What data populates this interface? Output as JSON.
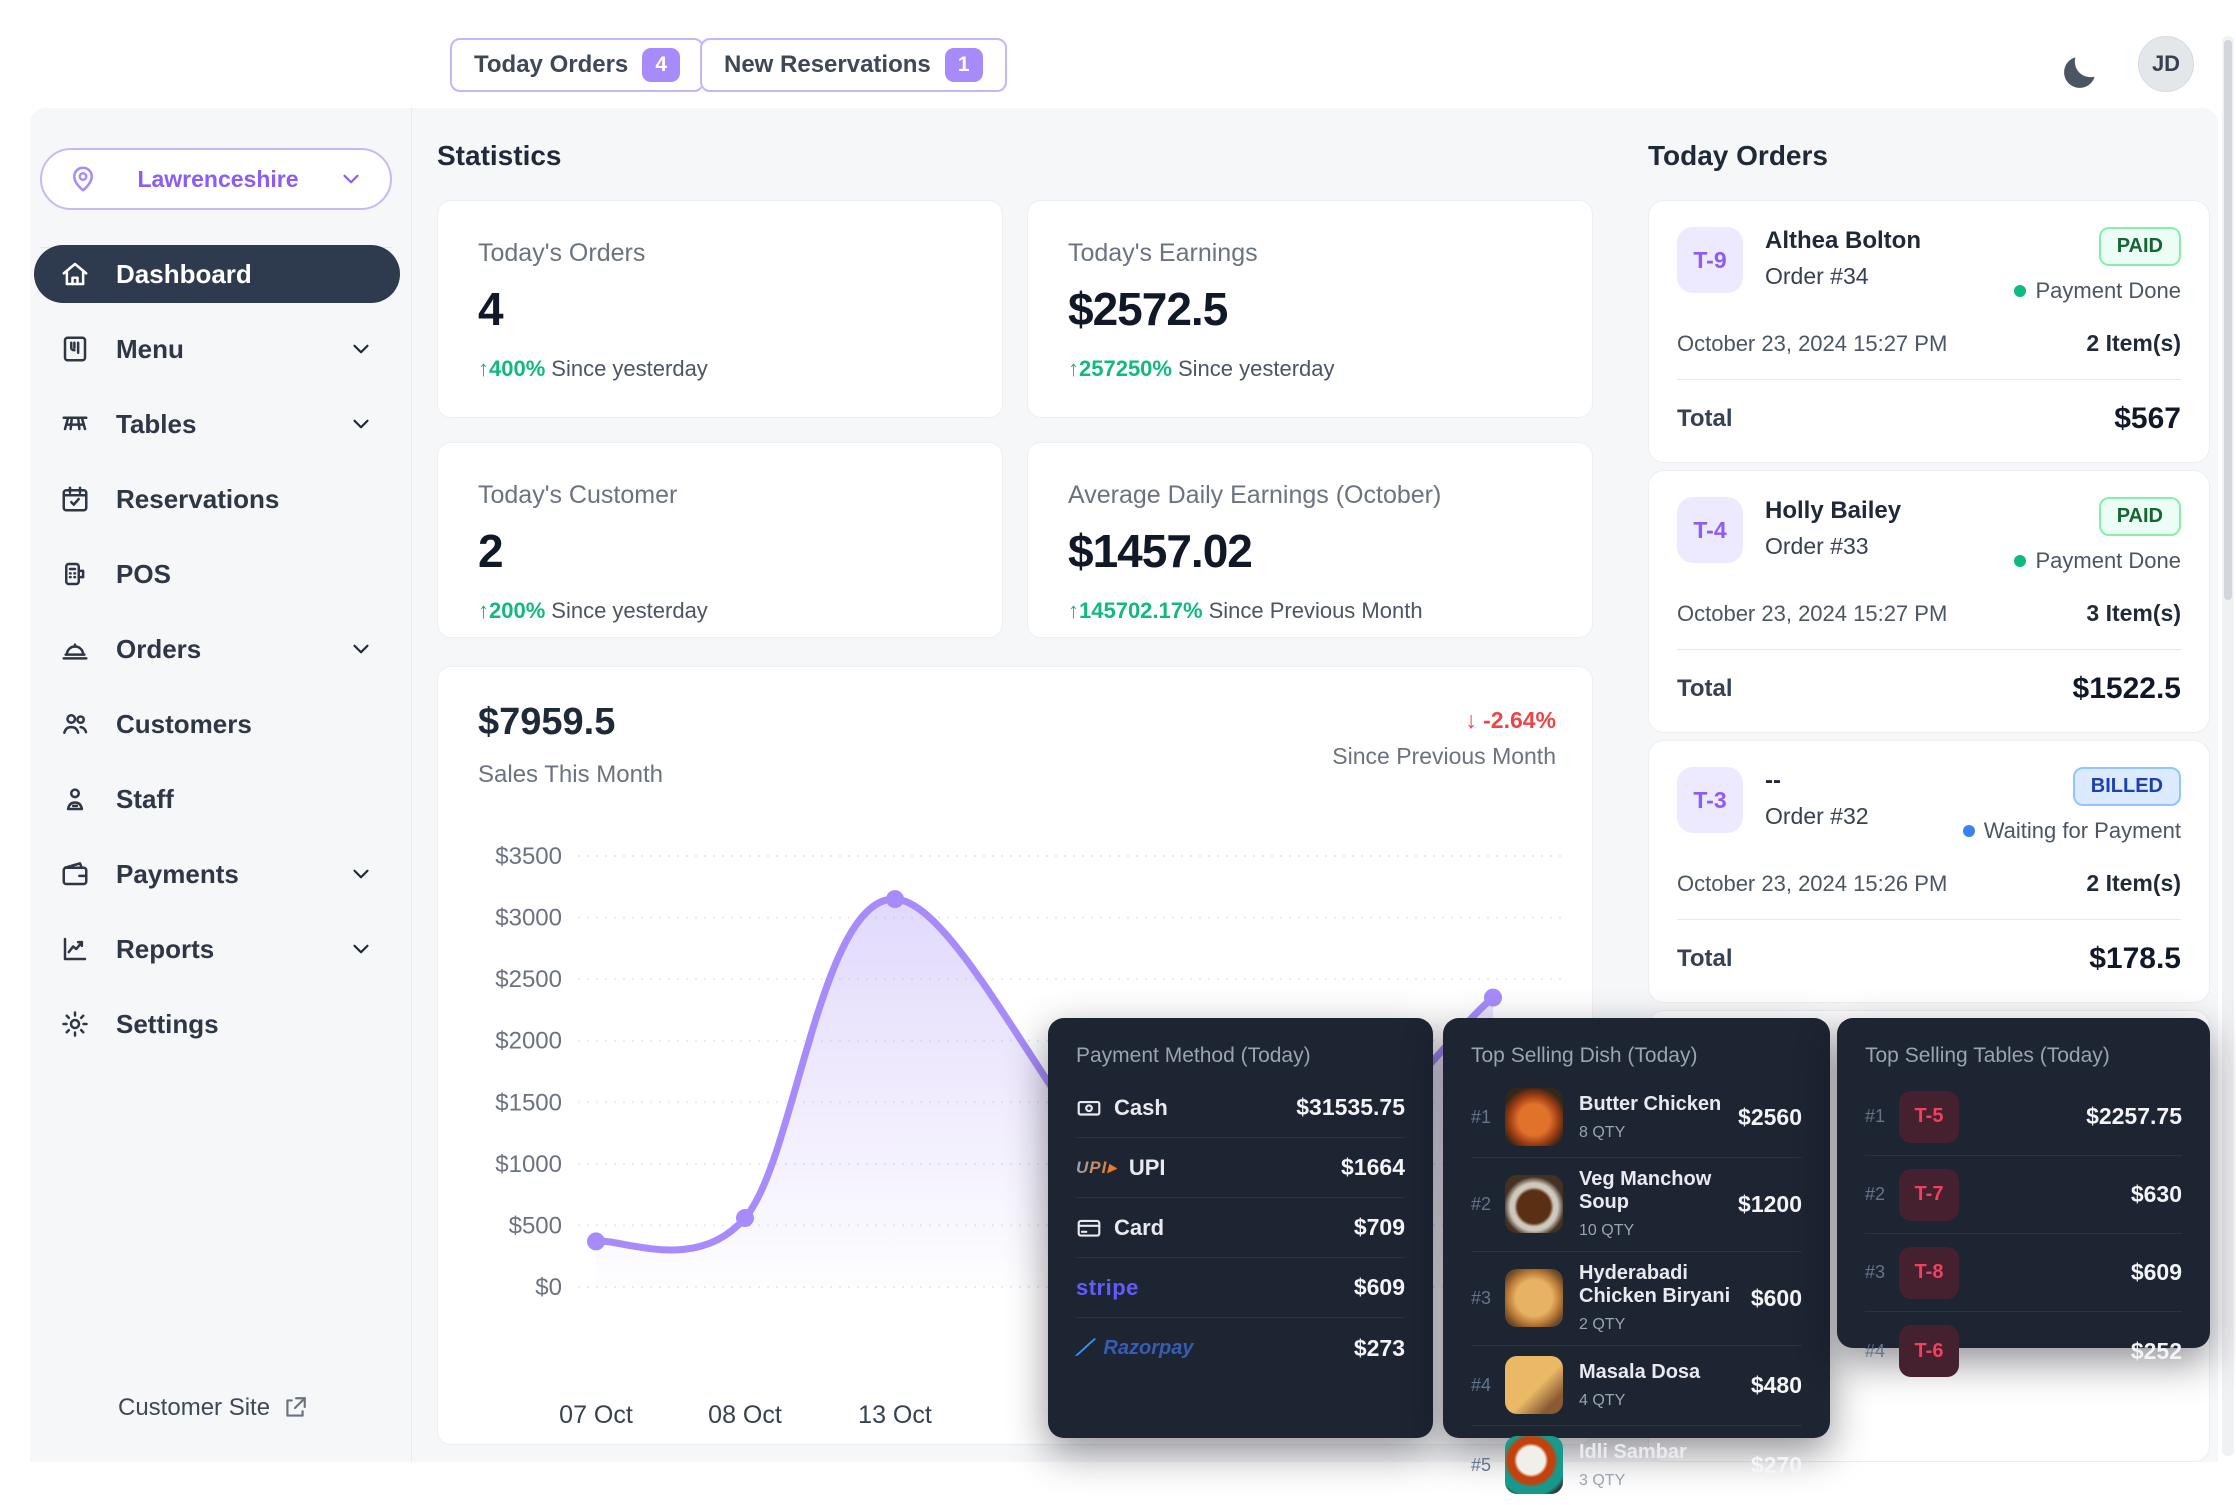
{
  "colors": {
    "accent_purple": "#8b5cf6",
    "chart_line": "#a78bfa",
    "green_up": "#10b981",
    "red_down": "#ef4444",
    "paid_green": "#166534",
    "billed_blue": "#1e40af",
    "dark_panel_bg": "#1d2432",
    "active_nav_bg": "#2e3a4d",
    "table_badge_red": "#f43f5e"
  },
  "topbar": {
    "today_orders": {
      "label": "Today Orders",
      "count": "4"
    },
    "new_reservations": {
      "label": "New Reservations",
      "count": "1"
    },
    "avatar": "JD"
  },
  "sidebar": {
    "location": "Lawrenceshire",
    "items": [
      {
        "label": "Dashboard",
        "icon": "home",
        "active": true,
        "chevron": false
      },
      {
        "label": "Menu",
        "icon": "menu-book",
        "active": false,
        "chevron": true
      },
      {
        "label": "Tables",
        "icon": "table",
        "active": false,
        "chevron": true
      },
      {
        "label": "Reservations",
        "icon": "calendar-check",
        "active": false,
        "chevron": false
      },
      {
        "label": "POS",
        "icon": "pos-terminal",
        "active": false,
        "chevron": false
      },
      {
        "label": "Orders",
        "icon": "cloche",
        "active": false,
        "chevron": true
      },
      {
        "label": "Customers",
        "icon": "users",
        "active": false,
        "chevron": false
      },
      {
        "label": "Staff",
        "icon": "staff",
        "active": false,
        "chevron": false
      },
      {
        "label": "Payments",
        "icon": "wallet",
        "active": false,
        "chevron": true
      },
      {
        "label": "Reports",
        "icon": "chart-report",
        "active": false,
        "chevron": true
      },
      {
        "label": "Settings",
        "icon": "gear",
        "active": false,
        "chevron": false
      }
    ],
    "footer_link": "Customer Site"
  },
  "stats": {
    "title": "Statistics",
    "cards": [
      {
        "label": "Today's Orders",
        "value": "4",
        "delta": "400%",
        "note": "Since yesterday"
      },
      {
        "label": "Today's Earnings",
        "value": "$2572.5",
        "delta": "257250%",
        "note": "Since yesterday"
      },
      {
        "label": "Today's Customer",
        "value": "2",
        "delta": "200%",
        "note": "Since yesterday"
      },
      {
        "label": "Average Daily Earnings (October)",
        "value": "$1457.02",
        "delta": "145702.17%",
        "note": "Since Previous Month"
      }
    ]
  },
  "sales_chart": {
    "total": "$7959.5",
    "subtitle": "Sales This Month",
    "delta": "-2.64%",
    "delta_note": "Since Previous Month"
  },
  "chart_data": {
    "type": "area",
    "title": "Sales This Month",
    "total_label": "$7959.5",
    "change_vs_previous_month": "-2.64%",
    "ylim": [
      0,
      3500
    ],
    "y_ticks": [
      0,
      500,
      1000,
      1500,
      2000,
      2500,
      3000,
      3500
    ],
    "y_tick_prefix": "$",
    "grid": "dotted-horizontal",
    "x_labels_visible": [
      "07 Oct",
      "08 Oct",
      "13 Oct"
    ],
    "x_labels_hidden_by_overlay": true,
    "points": [
      {
        "label": "07 Oct",
        "value": 370
      },
      {
        "label": "08 Oct",
        "value": 560
      },
      {
        "label": "13 Oct",
        "value": 3150
      },
      {
        "label": "",
        "value": 420
      },
      {
        "label": "",
        "value": 2350
      }
    ],
    "line_color": "#a78bfa"
  },
  "today_orders": {
    "title": "Today Orders",
    "orders": [
      {
        "table": "T-9",
        "name": "Althea Bolton",
        "order": "Order #34",
        "status": "PAID",
        "status_type": "paid",
        "status_note": "Payment Done",
        "datetime": "October 23, 2024 15:27 PM",
        "items": "2 Item(s)",
        "total_label": "Total",
        "total": "$567"
      },
      {
        "table": "T-4",
        "name": "Holly Bailey",
        "order": "Order #33",
        "status": "PAID",
        "status_type": "paid",
        "status_note": "Payment Done",
        "datetime": "October 23, 2024 15:27 PM",
        "items": "3 Item(s)",
        "total_label": "Total",
        "total": "$1522.5"
      },
      {
        "table": "T-3",
        "name": "--",
        "order": "Order #32",
        "status": "BILLED",
        "status_type": "billed",
        "status_note": "Waiting for Payment",
        "datetime": "October 23, 2024 15:26 PM",
        "items": "2 Item(s)",
        "total_label": "Total",
        "total": "$178.5"
      }
    ]
  },
  "panels": {
    "payment_method": {
      "title": "Payment Method (Today)",
      "rows": [
        {
          "method": "Cash",
          "logo": "cash-icon",
          "amount": "$31535.75"
        },
        {
          "method": "UPI",
          "logo": "upi-logo",
          "amount": "$1664"
        },
        {
          "method": "Card",
          "logo": "card-icon",
          "amount": "$709"
        },
        {
          "method": "stripe",
          "logo": "stripe-logo",
          "amount": "$609"
        },
        {
          "method": "Razorpay",
          "logo": "razorpay-logo",
          "amount": "$273"
        }
      ]
    },
    "top_dishes": {
      "title": "Top Selling Dish (Today)",
      "rows": [
        {
          "rank": "#1",
          "name": "Butter Chicken",
          "qty": "8 QTY",
          "price": "$2560"
        },
        {
          "rank": "#2",
          "name": "Veg Manchow Soup",
          "qty": "10 QTY",
          "price": "$1200"
        },
        {
          "rank": "#3",
          "name": "Hyderabadi Chicken Biryani",
          "qty": "2 QTY",
          "price": "$600"
        },
        {
          "rank": "#4",
          "name": "Masala Dosa",
          "qty": "4 QTY",
          "price": "$480"
        },
        {
          "rank": "#5",
          "name": "Idli Sambar",
          "qty": "3 QTY",
          "price": "$270"
        }
      ]
    },
    "top_tables": {
      "title": "Top Selling Tables (Today)",
      "rows": [
        {
          "rank": "#1",
          "table": "T-5",
          "amount": "$2257.75"
        },
        {
          "rank": "#2",
          "table": "T-7",
          "amount": "$630"
        },
        {
          "rank": "#3",
          "table": "T-8",
          "amount": "$609"
        },
        {
          "rank": "#4",
          "table": "T-6",
          "amount": "$252"
        }
      ]
    }
  }
}
